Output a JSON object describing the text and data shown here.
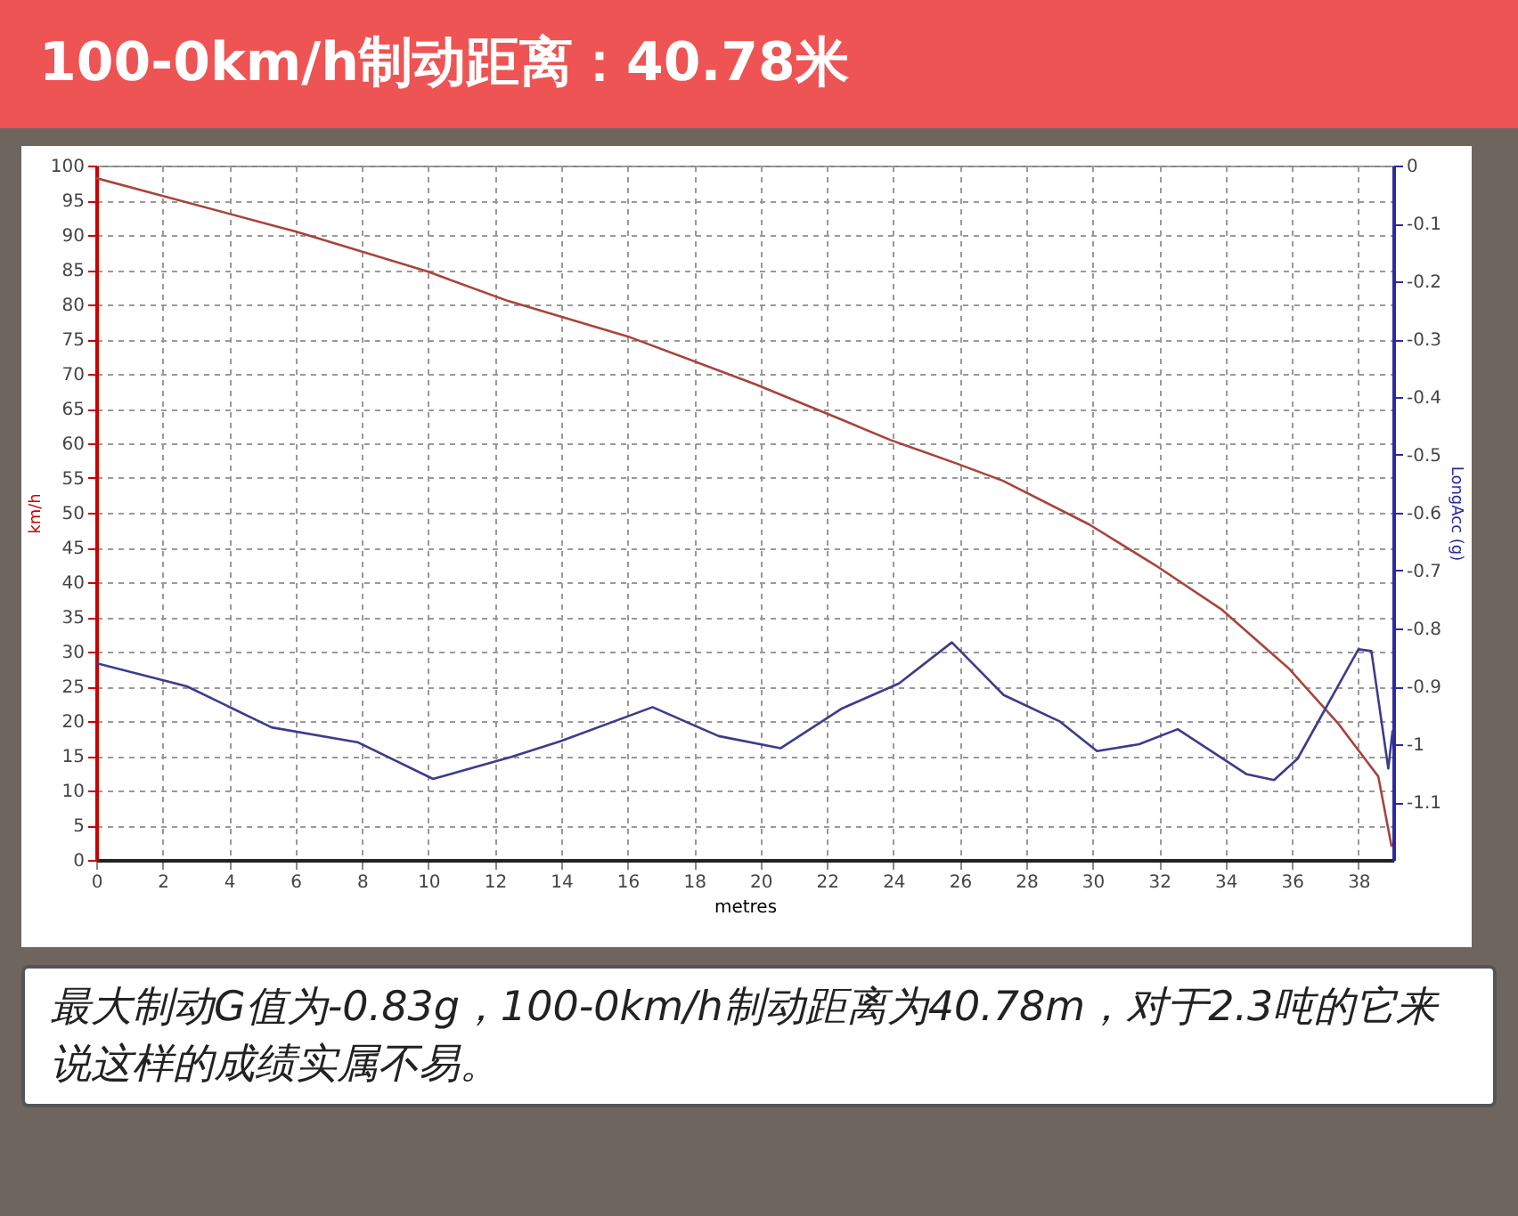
{
  "chart_data": {
    "type": "line",
    "title": "100-0km/h制动距离：40.78米",
    "xlabel": "metres",
    "ylabel": "km/h",
    "y2label": "LongAcc (g)",
    "xlim": [
      0,
      39.05
    ],
    "xticks": [
      0,
      2,
      4,
      6,
      8,
      10,
      12,
      14,
      16,
      18,
      20,
      22,
      24,
      26,
      28,
      30,
      32,
      34,
      36,
      38
    ],
    "ylim": [
      0,
      100
    ],
    "yticks": [
      0,
      5,
      10,
      15,
      20,
      25,
      30,
      35,
      40,
      45,
      50,
      55,
      60,
      65,
      70,
      75,
      80,
      85,
      90,
      95,
      100
    ],
    "y2lim": [
      -1.2,
      0
    ],
    "y2ticks": [
      0,
      -0.1,
      -0.2,
      -0.3,
      -0.4,
      -0.5,
      -0.6,
      -0.7,
      -0.8,
      -0.9,
      -1,
      -1.1
    ],
    "grid": true,
    "line_style": "solid",
    "series": [
      {
        "color": "#a8443c",
        "axis": "y",
        "x": [
          0,
          6,
          10,
          12.4,
          16,
          19.85,
          22.4,
          23.9,
          25.9,
          27.3,
          29.9,
          31.9,
          33.9,
          35.9,
          37.4,
          38.6,
          39.0
        ],
        "values": [
          98.2,
          90.5,
          84.7,
          80.5,
          75.4,
          68.5,
          63.5,
          60.5,
          57.1,
          54.6,
          48.3,
          42.4,
          36.0,
          27.6,
          19.6,
          12.0,
          1.9
        ]
      },
      {
        "color": "#3c3c8c",
        "axis": "y2",
        "x": [
          0,
          2.73,
          5.28,
          7.89,
          10.14,
          12.5,
          13.97,
          16.75,
          18.74,
          20.6,
          22.46,
          24.17,
          25.76,
          27.32,
          29.02,
          30.13,
          31.4,
          32.56,
          34.64,
          35.46,
          36.17,
          38.0,
          38.39,
          38.9,
          39.03
        ],
        "values": [
          -0.86,
          -0.9,
          -0.971,
          -0.997,
          -1.06,
          -1.022,
          -0.995,
          -0.936,
          -0.986,
          -1.007,
          -0.938,
          -0.895,
          -0.824,
          -0.915,
          -0.961,
          -1.012,
          -1.0,
          -0.974,
          -1.052,
          -1.062,
          -1.025,
          -0.836,
          -0.839,
          -1.042,
          -0.976
        ]
      }
    ],
    "annotations": [
      "最大制动G值为-0.83g，100-0km/h制动距离为40.78m，对于2.3吨的它来说这样的成绩实属不易。"
    ]
  }
}
